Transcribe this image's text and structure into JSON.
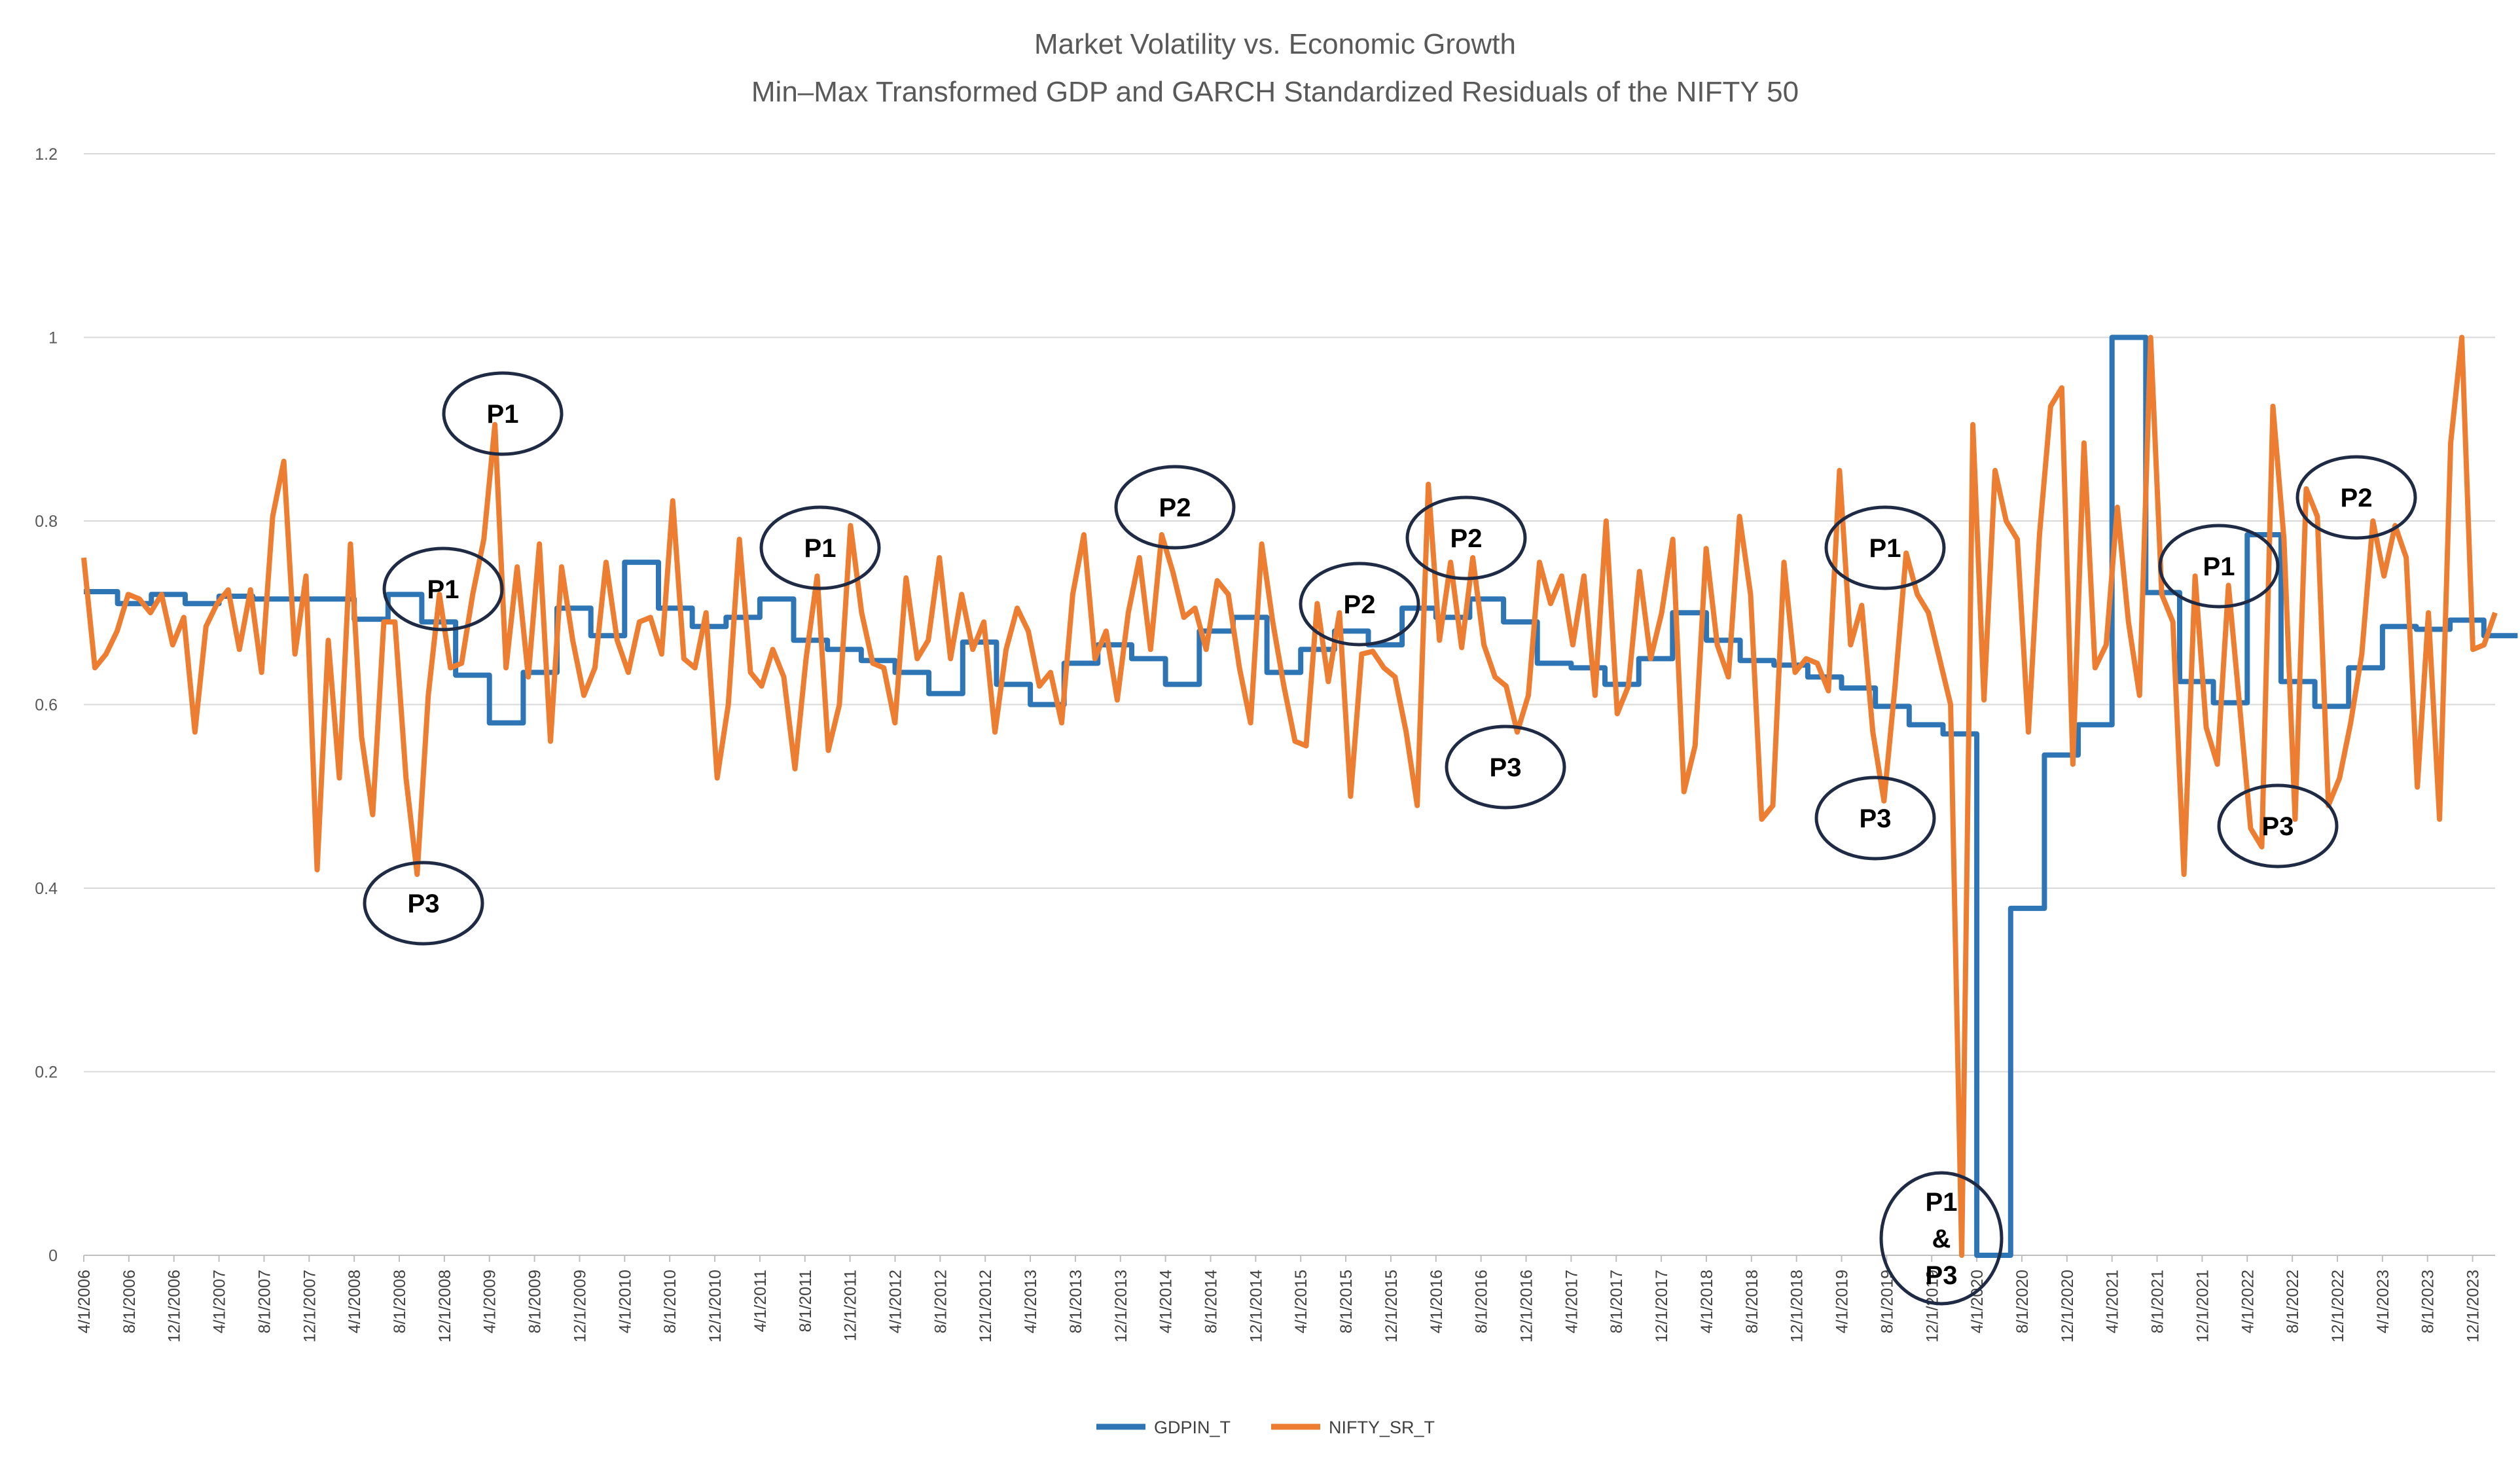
{
  "chart_data": {
    "type": "line",
    "title": "Market Volatility vs. Economic Growth",
    "subtitle": "Min–Max Transformed GDP and GARCH Standardized Residuals of the NIFTY 50",
    "xlabel": "",
    "ylabel": "",
    "ylim": [
      0,
      1.2
    ],
    "yticks": [
      "0",
      "0.2",
      "0.4",
      "0.6",
      "0.8",
      "1",
      "1.2"
    ],
    "grid": true,
    "legend_position": "bottom-center",
    "x_labels": [
      "4/1/2006",
      "8/1/2006",
      "12/1/2006",
      "4/1/2007",
      "8/1/2007",
      "12/1/2007",
      "4/1/2008",
      "8/1/2008",
      "12/1/2008",
      "4/1/2009",
      "8/1/2009",
      "12/1/2009",
      "4/1/2010",
      "8/1/2010",
      "12/1/2010",
      "4/1/2011",
      "8/1/2011",
      "12/1/2011",
      "4/1/2012",
      "8/1/2012",
      "12/1/2012",
      "4/1/2013",
      "8/1/2013",
      "12/1/2013",
      "4/1/2014",
      "8/1/2014",
      "12/1/2014",
      "4/1/2015",
      "8/1/2015",
      "12/1/2015",
      "4/1/2016",
      "8/1/2016",
      "12/1/2016",
      "4/1/2017",
      "8/1/2017",
      "12/1/2017",
      "4/1/2018",
      "8/1/2018",
      "12/1/2018",
      "4/1/2019",
      "8/1/2019",
      "12/1/2019",
      "4/1/2020",
      "8/1/2020",
      "12/1/2020",
      "4/1/2021",
      "8/1/2021",
      "12/1/2021",
      "4/1/2022",
      "8/1/2022",
      "12/1/2022",
      "4/1/2023",
      "8/1/2023",
      "12/1/2023"
    ],
    "series": [
      {
        "name": "GDPIN_T",
        "color": "#2E75B6",
        "quarterly_values": [
          0.723,
          0.71,
          0.72,
          0.71,
          0.718,
          0.715,
          0.715,
          0.715,
          0.693,
          0.72,
          0.69,
          0.632,
          0.58,
          0.635,
          0.705,
          0.675,
          0.755,
          0.705,
          0.685,
          0.695,
          0.715,
          0.67,
          0.66,
          0.648,
          0.635,
          0.612,
          0.668,
          0.622,
          0.6,
          0.645,
          0.665,
          0.65,
          0.622,
          0.68,
          0.695,
          0.635,
          0.66,
          0.68,
          0.665,
          0.705,
          0.695,
          0.715,
          0.69,
          0.645,
          0.64,
          0.622,
          0.65,
          0.7,
          0.67,
          0.648,
          0.643,
          0.63,
          0.618,
          0.598,
          0.578,
          0.568,
          0.0,
          0.378,
          0.545,
          0.578,
          1.0,
          0.722,
          0.625,
          0.602,
          0.785,
          0.625,
          0.598,
          0.64,
          0.685,
          0.682,
          0.692,
          0.675
        ]
      },
      {
        "name": "NIFTY_SR_T",
        "color": "#ED7D31",
        "monthly_values": [
          0.76,
          0.64,
          0.655,
          0.68,
          0.72,
          0.715,
          0.7,
          0.72,
          0.665,
          0.695,
          0.57,
          0.685,
          0.71,
          0.725,
          0.66,
          0.725,
          0.635,
          0.805,
          0.865,
          0.655,
          0.74,
          0.42,
          0.67,
          0.52,
          0.775,
          0.565,
          0.48,
          0.69,
          0.69,
          0.52,
          0.415,
          0.61,
          0.72,
          0.64,
          0.645,
          0.72,
          0.78,
          0.905,
          0.64,
          0.75,
          0.63,
          0.775,
          0.56,
          0.75,
          0.67,
          0.61,
          0.64,
          0.755,
          0.67,
          0.635,
          0.69,
          0.695,
          0.655,
          0.822,
          0.65,
          0.64,
          0.7,
          0.52,
          0.6,
          0.78,
          0.635,
          0.62,
          0.66,
          0.63,
          0.53,
          0.65,
          0.74,
          0.55,
          0.6,
          0.795,
          0.7,
          0.645,
          0.64,
          0.58,
          0.738,
          0.65,
          0.67,
          0.76,
          0.65,
          0.72,
          0.66,
          0.69,
          0.57,
          0.66,
          0.705,
          0.68,
          0.62,
          0.635,
          0.58,
          0.72,
          0.785,
          0.65,
          0.68,
          0.605,
          0.7,
          0.76,
          0.66,
          0.785,
          0.745,
          0.695,
          0.705,
          0.66,
          0.735,
          0.72,
          0.64,
          0.58,
          0.775,
          0.69,
          0.62,
          0.56,
          0.555,
          0.71,
          0.625,
          0.7,
          0.5,
          0.655,
          0.658,
          0.64,
          0.63,
          0.57,
          0.49,
          0.84,
          0.67,
          0.755,
          0.662,
          0.76,
          0.665,
          0.63,
          0.62,
          0.57,
          0.61,
          0.755,
          0.71,
          0.74,
          0.665,
          0.74,
          0.61,
          0.8,
          0.59,
          0.62,
          0.745,
          0.65,
          0.7,
          0.78,
          0.505,
          0.555,
          0.77,
          0.665,
          0.63,
          0.805,
          0.72,
          0.475,
          0.49,
          0.755,
          0.635,
          0.65,
          0.645,
          0.615,
          0.855,
          0.665,
          0.708,
          0.57,
          0.495,
          0.62,
          0.765,
          0.72,
          0.7,
          0.65,
          0.6,
          0.0,
          0.905,
          0.605,
          0.855,
          0.8,
          0.78,
          0.57,
          0.785,
          0.925,
          0.945,
          0.535,
          0.885,
          0.64,
          0.665,
          0.815,
          0.69,
          0.61,
          1.0,
          0.72,
          0.69,
          0.415,
          0.74,
          0.575,
          0.535,
          0.73,
          0.6,
          0.465,
          0.445,
          0.925,
          0.78,
          0.475,
          0.835,
          0.805,
          0.49,
          0.52,
          0.58,
          0.655,
          0.8,
          0.74,
          0.795,
          0.76,
          0.51,
          0.7,
          0.475,
          0.885,
          1.0,
          0.66,
          0.665,
          0.7
        ]
      }
    ],
    "annotations": [
      {
        "label": "P1"
      },
      {
        "label": "P3"
      },
      {
        "label": "P1"
      },
      {
        "label": "P1"
      },
      {
        "label": "P2"
      },
      {
        "label": "P2"
      },
      {
        "label": "P2"
      },
      {
        "label": "P3"
      },
      {
        "label": "P1"
      },
      {
        "label": "P3"
      },
      {
        "label": "P1"
      },
      {
        "label": "P3"
      },
      {
        "label": "P2"
      },
      {
        "label": "P1 & P3"
      }
    ]
  }
}
